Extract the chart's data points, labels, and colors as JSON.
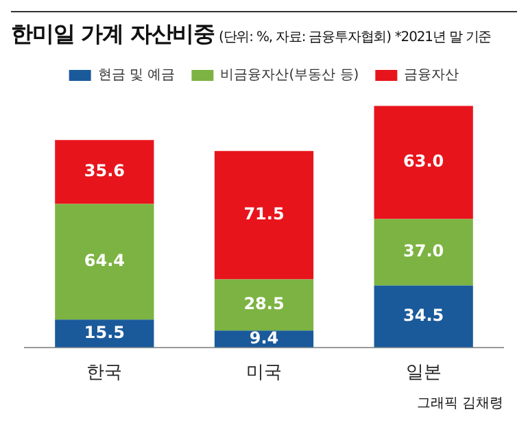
{
  "chart_data": {
    "type": "bar",
    "title": "한미일 가계 자산비중",
    "subtitle": "(단위: %, 자료: 금융투자협회)",
    "categories": [
      "한국",
      "미국",
      "일본"
    ],
    "stacked": true,
    "legend": "top",
    "series": [
      {
        "name": "현금 및 예금",
        "color": "#1a5a9a",
        "values": [
          15.5,
          9.4,
          34.5
        ],
        "value_labels": [
          "15.5",
          "9.4",
          "34.5"
        ]
      },
      {
        "name": "비금융자산(부동산 등)",
        "color": "#7cb342",
        "values": [
          64.4,
          28.5,
          37.0
        ],
        "value_labels": [
          "64.4",
          "28.5",
          "37.0"
        ]
      },
      {
        "name": "금융자산",
        "color": "#e8141c",
        "values": [
          35.6,
          71.5,
          63.0
        ],
        "value_labels": [
          "35.6",
          "71.5",
          "63.0"
        ]
      }
    ],
    "annotations": [
      "*2021년 말 기준",
      "그래픽 김채령"
    ]
  }
}
